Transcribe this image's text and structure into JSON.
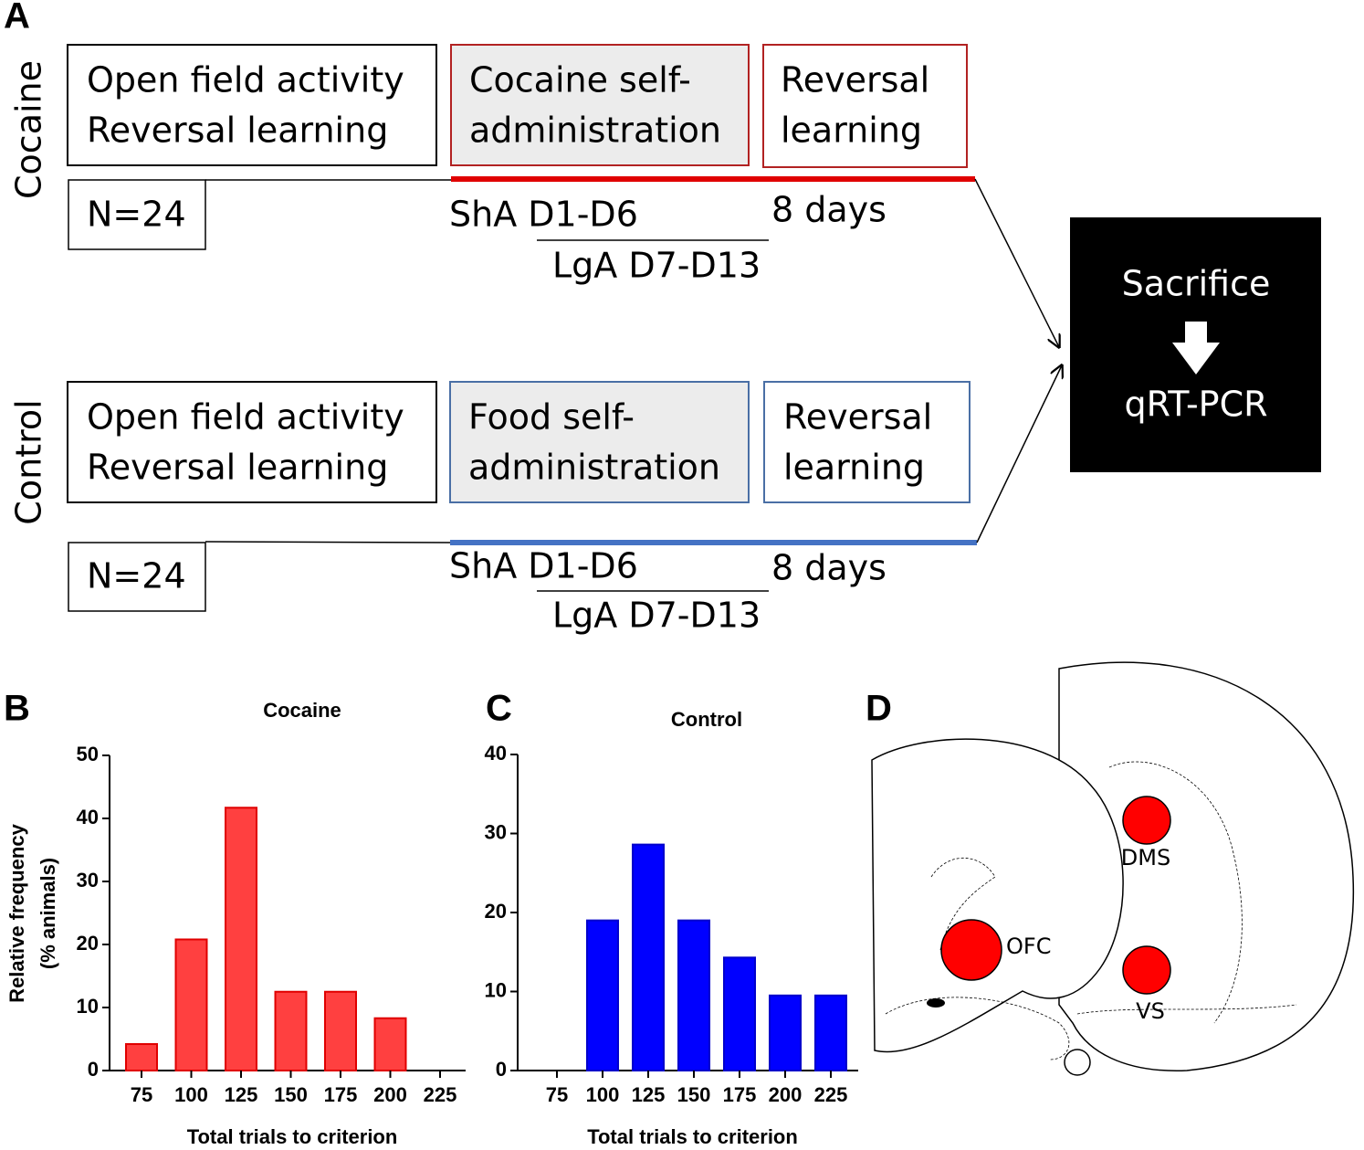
{
  "diagram": {
    "panel_label": "A",
    "groups": [
      {
        "name": "Cocaine",
        "boxes": [
          [
            "Open field activity",
            "Reversal learning"
          ],
          [
            "Cocaine self-",
            "administration"
          ],
          [
            "Reversal",
            "learning"
          ]
        ],
        "n": "N=24",
        "sha": "ShA D1-D6",
        "lga": "LgA D7-D13",
        "days": "8 days"
      },
      {
        "name": "Control",
        "boxes": [
          [
            "Open field activity",
            "Reversal learning"
          ],
          [
            "Food self-",
            "administration"
          ],
          [
            "Reversal",
            "learning"
          ]
        ],
        "n": "N=24",
        "sha": "ShA D1-D6",
        "lga": "LgA D7-D13",
        "days": "8 days"
      }
    ],
    "outcome": [
      "Sacrifice",
      "qRT-PCR"
    ]
  },
  "chart_data": [
    {
      "type": "bar",
      "panel_label": "B",
      "title": "Cocaine",
      "xlabel": "Total trials to criterion",
      "ylabel": [
        "Relative frequency",
        "(% animals)"
      ],
      "categories": [
        75,
        100,
        125,
        150,
        175,
        200,
        225
      ],
      "values": [
        4.2,
        20.8,
        41.7,
        12.5,
        12.5,
        8.3,
        0
      ],
      "color": "#ff4040",
      "edgecolor": "#e00000",
      "ylim": [
        0,
        50
      ],
      "yticks": [
        0,
        10,
        20,
        30,
        40,
        50
      ]
    },
    {
      "type": "bar",
      "panel_label": "C",
      "title": "Control",
      "xlabel": "Total trials to criterion",
      "categories": [
        75,
        100,
        125,
        150,
        175,
        200,
        225
      ],
      "values": [
        0,
        19,
        28.6,
        19,
        14.3,
        9.5,
        9.5
      ],
      "color": "#0000ff",
      "edgecolor": "#0000cc",
      "ylim": [
        0,
        40
      ],
      "yticks": [
        0,
        10,
        20,
        30,
        40
      ]
    }
  ],
  "brain": {
    "panel_label": "D",
    "regions": [
      "OFC",
      "DMS",
      "VS"
    ]
  }
}
